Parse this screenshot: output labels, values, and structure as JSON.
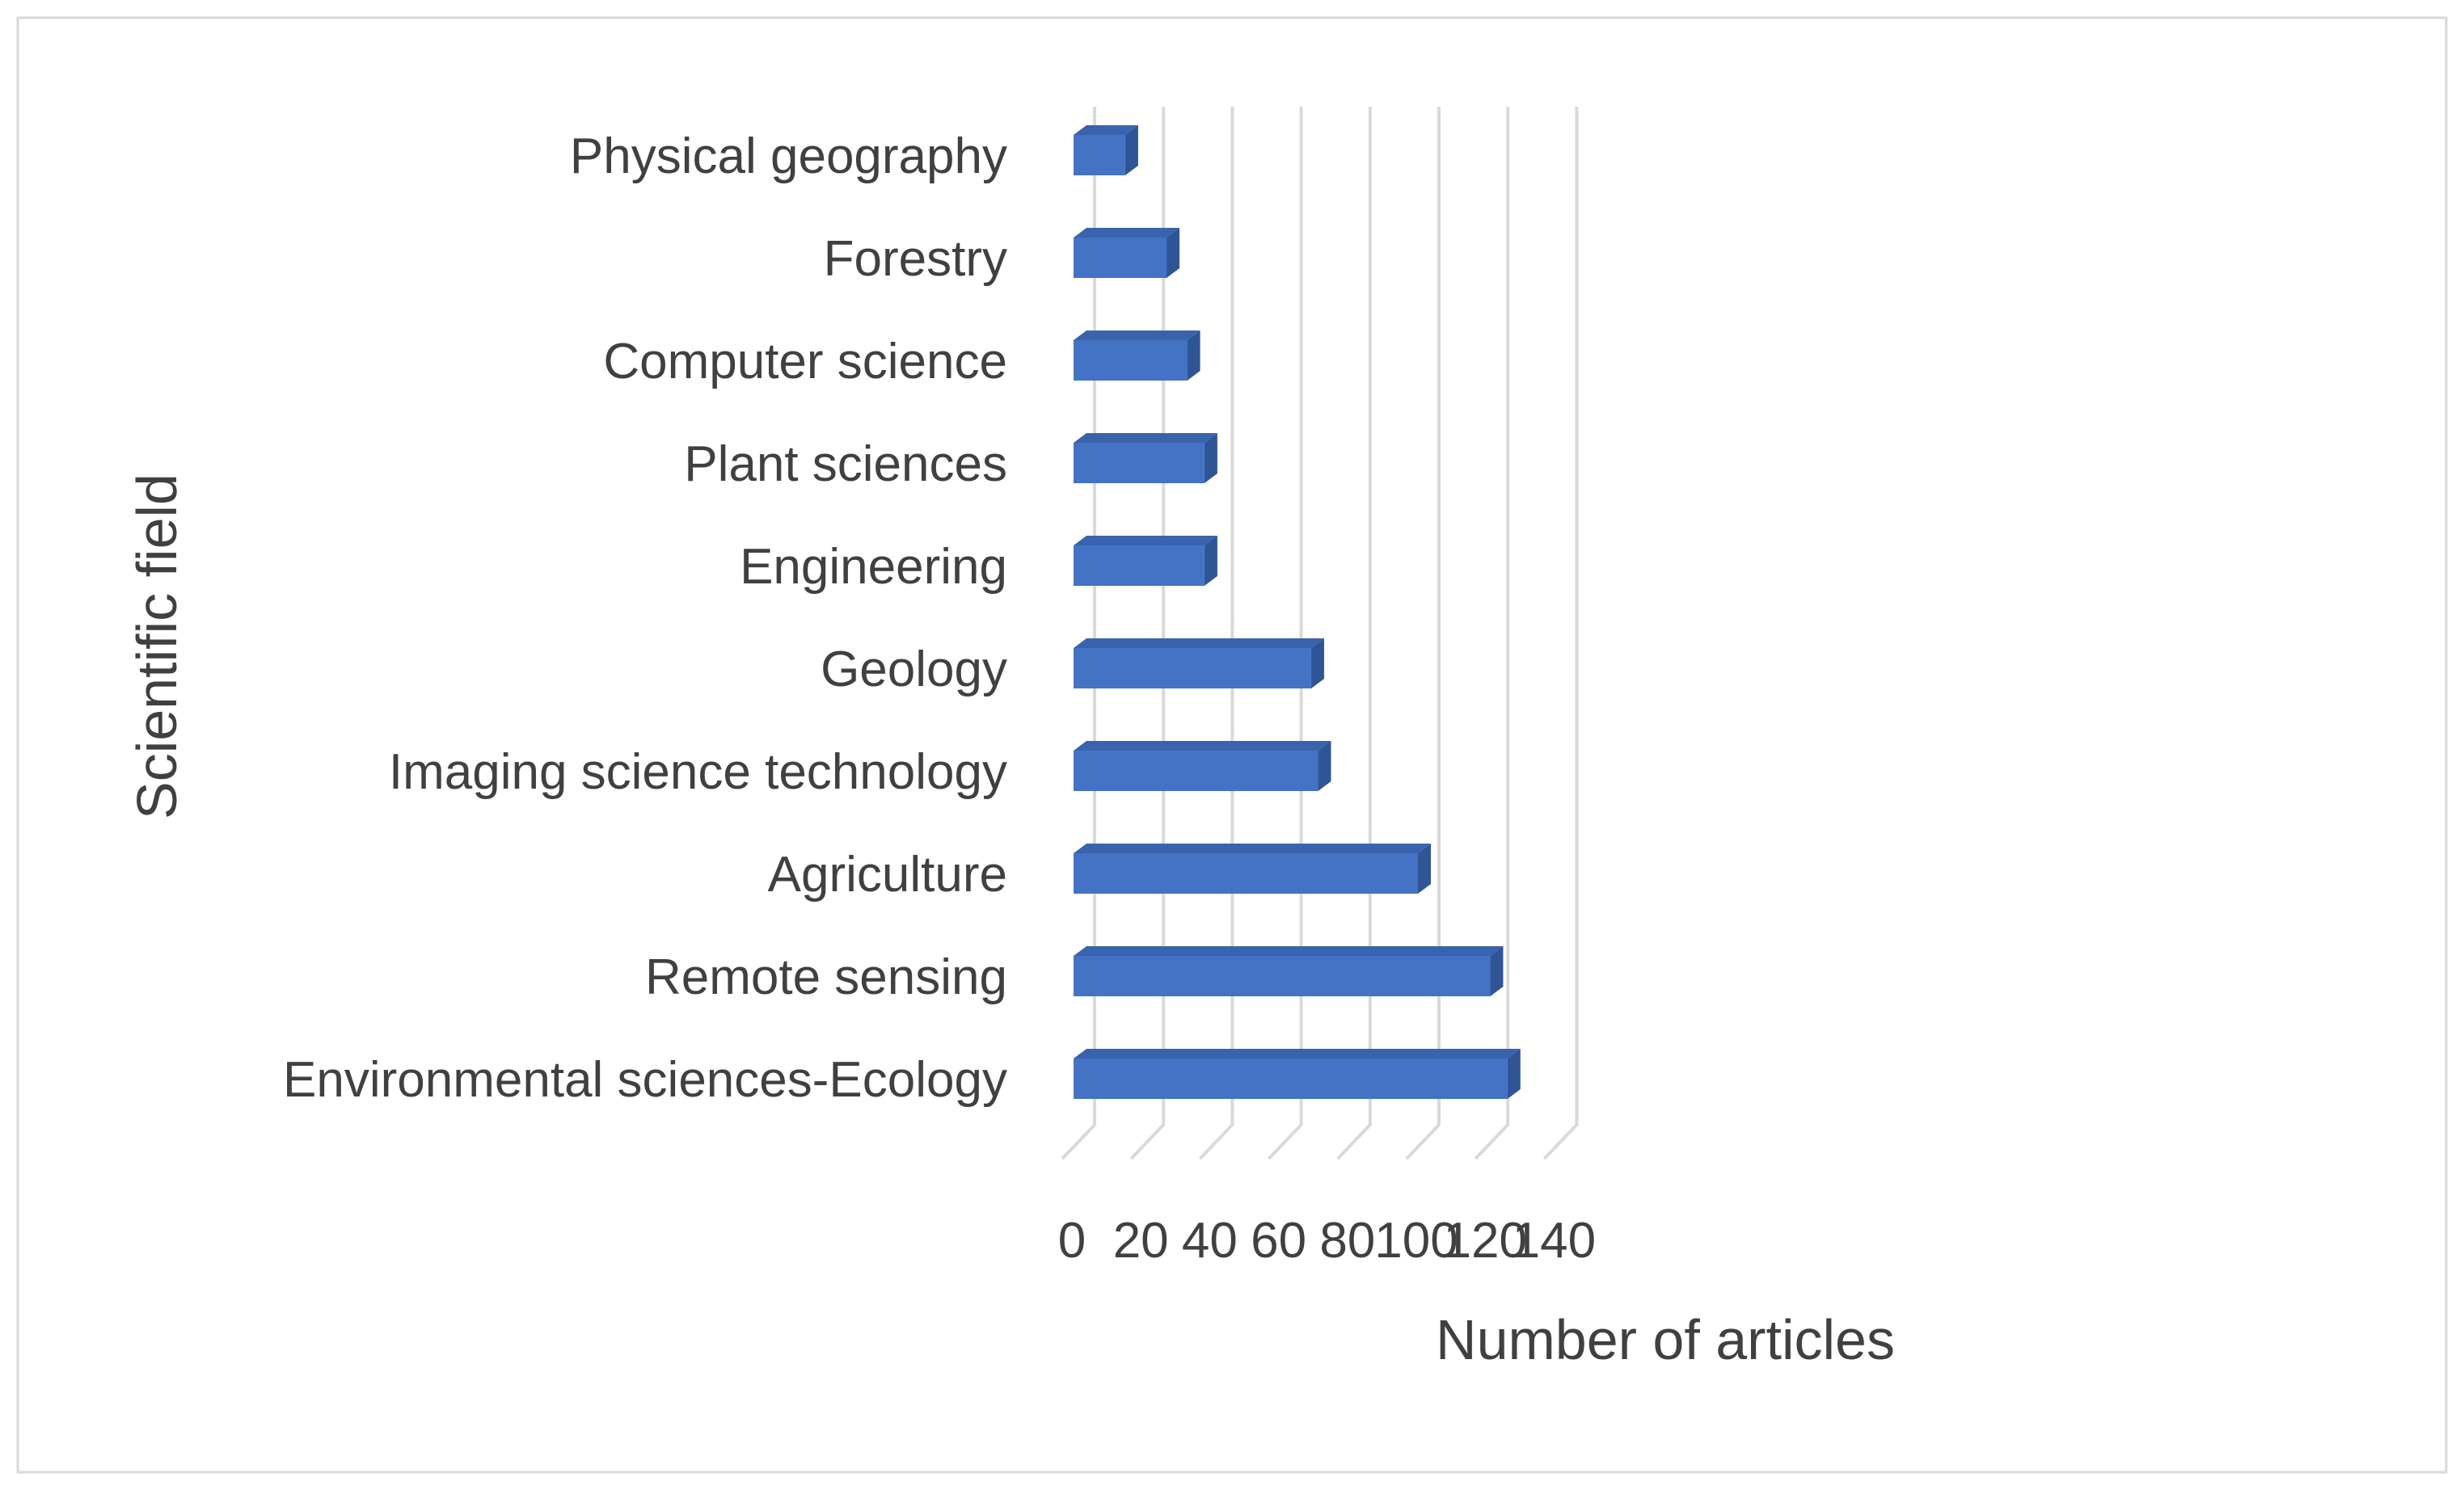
{
  "chart_data": {
    "type": "bar",
    "orientation": "horizontal",
    "style": "3d",
    "categories": [
      "Physical geography",
      "Forestry",
      "Computer science",
      "Plant sciences",
      "Engineering",
      "Geology",
      "Imaging science technology",
      "Agriculture",
      "Remote sensing",
      "Environmental sciences-Ecology"
    ],
    "values": [
      15,
      27,
      33,
      38,
      38,
      69,
      71,
      100,
      121,
      126
    ],
    "xlabel": "Number of articles",
    "ylabel": "Scientific field",
    "xlim": [
      0,
      140
    ],
    "xticks": [
      "0",
      "20",
      "40",
      "60",
      "80",
      "100",
      "120",
      "140"
    ],
    "grid": true,
    "legend": false,
    "colors": {
      "bar": "#4472c4",
      "bar_side": "#2f5597",
      "grid": "#d9d9d9",
      "text": "#404040"
    }
  }
}
